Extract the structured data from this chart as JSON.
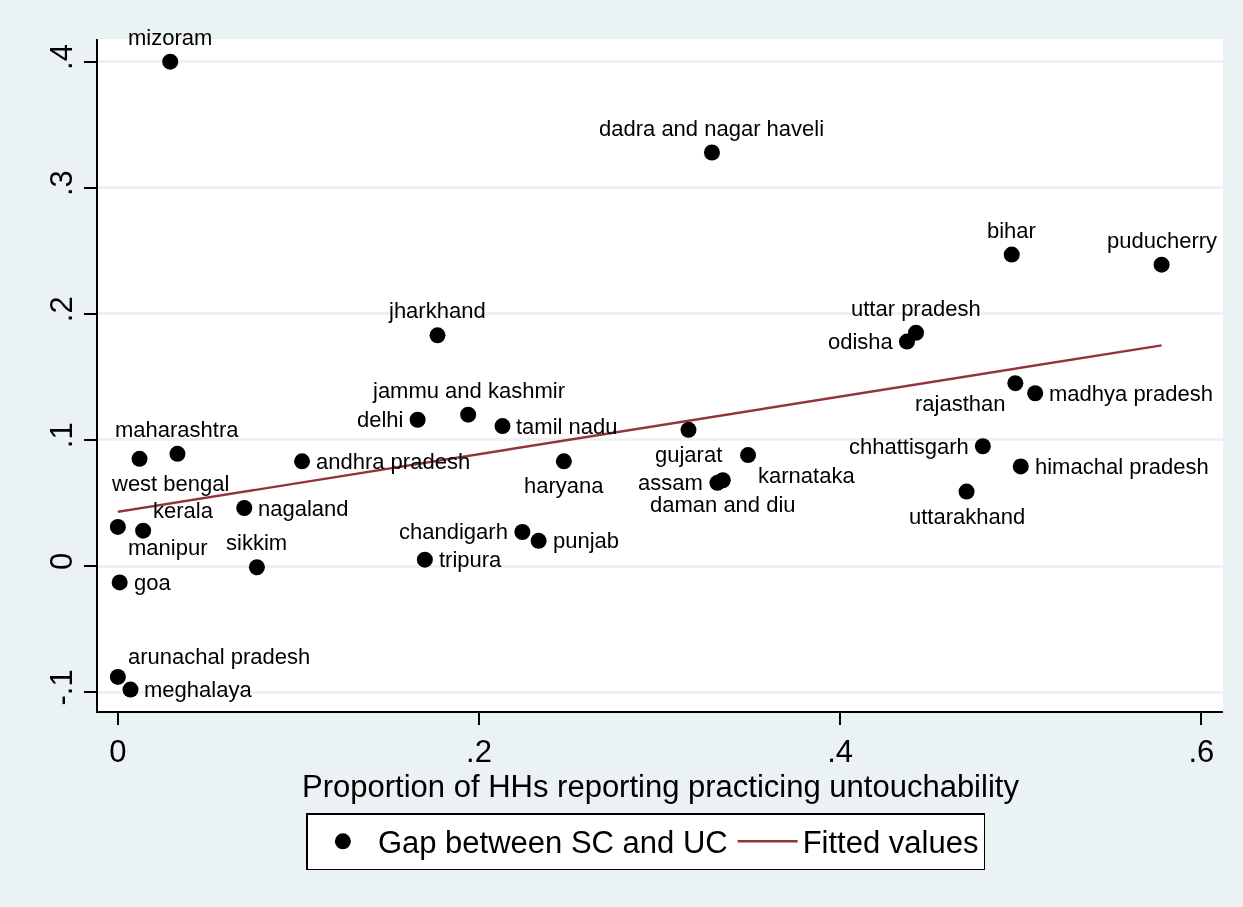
{
  "chart_data": {
    "type": "scatter",
    "xlabel": "Proportion of HHs reporting practicing untouchability",
    "xlim": [
      -0.011,
      0.612
    ],
    "ylim": [
      -0.115,
      0.418
    ],
    "xticks": [
      0,
      {
        "value": 0.2,
        "label": ".2"
      },
      {
        "value": 0.4,
        "label": ".4"
      },
      {
        "value": 0.6,
        "label": ".6"
      }
    ],
    "yticks": [
      {
        "value": -0.1,
        "label": "-.1"
      },
      0,
      {
        "value": 0.1,
        "label": ".1"
      },
      {
        "value": 0.2,
        "label": ".2"
      },
      {
        "value": 0.3,
        "label": ".3"
      },
      {
        "value": 0.4,
        "label": ".4"
      }
    ],
    "grid": "y",
    "legend": "bottom",
    "marker": "circle",
    "series": [
      {
        "name": "Gap between SC and UC",
        "color": "#000000",
        "x": [
          0.029,
          0.329,
          0.495,
          0.578,
          0.442,
          0.437,
          0.177,
          0.497,
          0.508,
          0.194,
          0.166,
          0.213,
          0.316,
          0.479,
          0.033,
          0.012,
          0.102,
          0.247,
          0.349,
          0.5,
          0.335,
          0.332,
          0.47,
          0.07,
          0.0,
          0.014,
          0.224,
          0.233,
          0.17,
          0.077,
          0.001,
          0.0,
          0.007
        ],
        "values": [
          0.4,
          0.328,
          0.247,
          0.239,
          0.185,
          0.178,
          0.183,
          0.145,
          0.137,
          0.12,
          0.116,
          0.111,
          0.108,
          0.095,
          0.089,
          0.085,
          0.083,
          0.083,
          0.088,
          0.079,
          0.068,
          0.066,
          0.059,
          0.046,
          0.031,
          0.028,
          0.027,
          0.02,
          0.005,
          -0.001,
          -0.013,
          -0.088,
          -0.098
        ]
      },
      {
        "name": "Fitted values",
        "type": "line",
        "color": "#90353b",
        "x": [
          0,
          0.578
        ],
        "values": [
          0.043,
          0.175
        ],
        "marker": "none",
        "line_style": "solid"
      }
    ],
    "annotations": [
      {
        "text": "mizoram",
        "x": 0.029,
        "y": 0.4
      },
      {
        "text": "dadra and nagar haveli",
        "x": 0.329,
        "y": 0.328
      },
      {
        "text": "bihar",
        "x": 0.495,
        "y": 0.247
      },
      {
        "text": "puducherry",
        "x": 0.578,
        "y": 0.239
      },
      {
        "text": "uttar pradesh",
        "x": 0.442,
        "y": 0.185
      },
      {
        "text": "odisha",
        "x": 0.437,
        "y": 0.178
      },
      {
        "text": "jharkhand",
        "x": 0.177,
        "y": 0.183
      },
      {
        "text": "rajasthan",
        "x": 0.497,
        "y": 0.145
      },
      {
        "text": "madhya pradesh",
        "x": 0.508,
        "y": 0.137
      },
      {
        "text": "jammu and kashmir",
        "x": 0.194,
        "y": 0.12
      },
      {
        "text": "delhi",
        "x": 0.166,
        "y": 0.116
      },
      {
        "text": "tamil nadu",
        "x": 0.213,
        "y": 0.111
      },
      {
        "text": "gujarat",
        "x": 0.316,
        "y": 0.108
      },
      {
        "text": "chhattisgarh",
        "x": 0.479,
        "y": 0.095
      },
      {
        "text": "maharashtra",
        "x": 0.033,
        "y": 0.089
      },
      {
        "text": "west bengal",
        "x": 0.012,
        "y": 0.085
      },
      {
        "text": "andhra pradesh",
        "x": 0.102,
        "y": 0.083
      },
      {
        "text": "haryana",
        "x": 0.247,
        "y": 0.083
      },
      {
        "text": "karnataka",
        "x": 0.349,
        "y": 0.088
      },
      {
        "text": "himachal pradesh",
        "x": 0.5,
        "y": 0.079
      },
      {
        "text": "daman and diu",
        "x": 0.335,
        "y": 0.068
      },
      {
        "text": "assam",
        "x": 0.332,
        "y": 0.066
      },
      {
        "text": "uttarakhand",
        "x": 0.47,
        "y": 0.059
      },
      {
        "text": "nagaland",
        "x": 0.07,
        "y": 0.046
      },
      {
        "text": "manipur",
        "x": 0.0,
        "y": 0.031
      },
      {
        "text": "kerala",
        "x": 0.014,
        "y": 0.028
      },
      {
        "text": "chandigarh",
        "x": 0.224,
        "y": 0.027
      },
      {
        "text": "punjab",
        "x": 0.233,
        "y": 0.02
      },
      {
        "text": "tripura",
        "x": 0.17,
        "y": 0.005
      },
      {
        "text": "sikkim",
        "x": 0.077,
        "y": -0.001
      },
      {
        "text": "goa",
        "x": 0.001,
        "y": -0.013
      },
      {
        "text": "arunachal pradesh",
        "x": 0.0,
        "y": -0.088
      },
      {
        "text": "meghalaya",
        "x": 0.007,
        "y": -0.098
      }
    ]
  }
}
